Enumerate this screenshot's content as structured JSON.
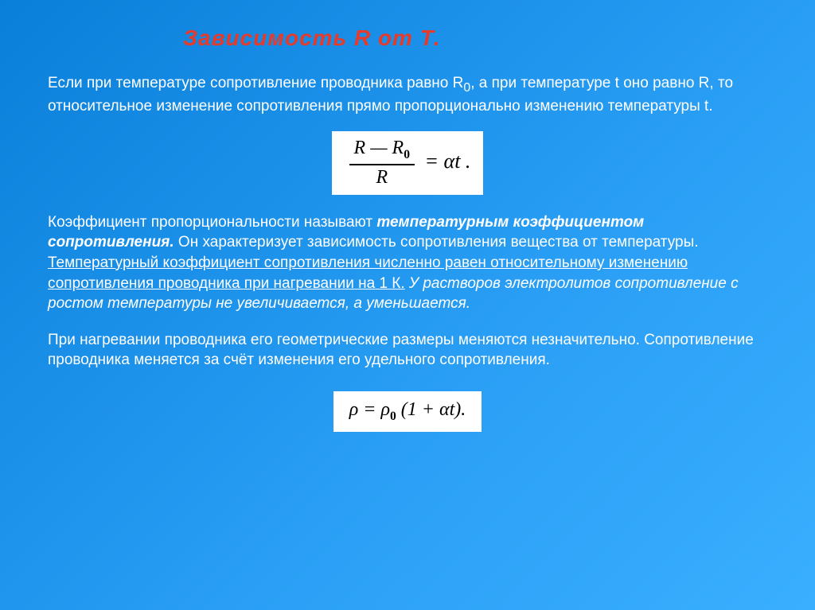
{
  "colors": {
    "background_gradient_start": "#0a7fd9",
    "background_gradient_end": "#3aafff",
    "title_color": "#e63a2a",
    "text_color": "#ffffff",
    "formula_bg": "#ffffff",
    "formula_text": "#000000"
  },
  "typography": {
    "title_fontsize": 28,
    "body_fontsize": 19,
    "formula_fontsize": 26
  },
  "title": "Зависимость R от Т.",
  "para1_a": "Если при температуре сопротивление проводника равно R",
  "para1_sub0": "0",
  "para1_b": ", а при температуре t оно равно R, то относительное изменение сопротивления прямо пропорционально изменению температуры t.",
  "formula1": {
    "numerator": "R — R",
    "numerator_sub": "0",
    "denominator": "R",
    "equals_rhs": "= αt ."
  },
  "para2_a": "Коэффициент пропорциональности называют ",
  "para2_term": "температурным коэффициентом сопротивления.",
  "para2_b": " Он характеризует зависимость сопротивления вещества от температуры. ",
  "para2_underline": "Температурный коэффициент сопротивления численно равен относительному изменению сопротивления проводника при нагревании на 1 К.",
  "para2_c": " У растворов электролитов сопротивление с ростом температуры не увеличивается, а уменьшается.",
  "para3": "При нагревании проводника его геометрические размеры меняются незначительно. Сопротивление проводника меняется за счёт изменения его удельного сопротивления.",
  "formula2": {
    "lhs": "ρ = ρ",
    "sub0": "0",
    "rhs": " (1 + αt)."
  }
}
